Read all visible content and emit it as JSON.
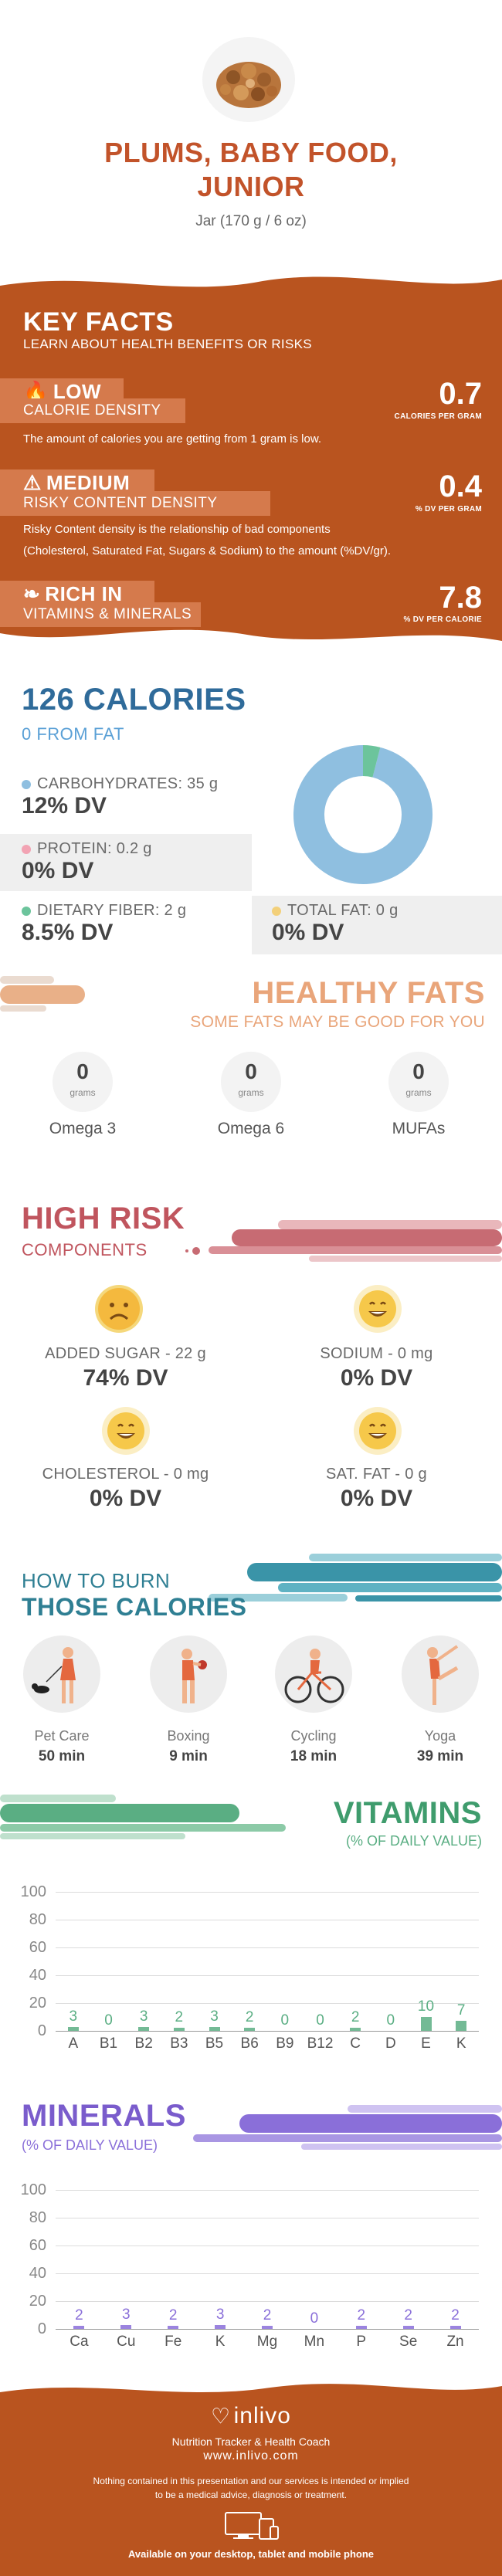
{
  "header": {
    "title_line1": "PLUMS, BABY FOOD,",
    "title_line2": "JUNIOR",
    "serving": "Jar (170 g / 6 oz)"
  },
  "key_facts": {
    "title": "KEY FACTS",
    "subtitle": "LEARN ABOUT HEALTH BENEFITS OR RISKS",
    "calorie": {
      "level": "LOW",
      "label": "CALORIE DENSITY",
      "value": "0.7",
      "unit": "CALORIES PER GRAM",
      "desc": "The amount of calories you are getting from 1 gram is low."
    },
    "risky": {
      "level": "MEDIUM",
      "label": "RISKY CONTENT DENSITY",
      "value": "0.4",
      "unit": "% DV PER GRAM",
      "desc1": "Risky Content density is the relationship of bad components",
      "desc2": "(Cholesterol, Saturated Fat, Sugars & Sodium) to the amount (%DV/gr)."
    },
    "rich": {
      "level": "RICH  IN",
      "label": "VITAMINS & MINERALS",
      "value": "7.8",
      "unit": "% DV PER CALORIE"
    }
  },
  "calories": {
    "title": "126 CALORIES",
    "from_fat": "0 FROM FAT",
    "carbs_label": "CARBOHYDRATES: 35 g",
    "carbs_dv": "12% DV",
    "protein_label": "PROTEIN: 0.2 g",
    "protein_dv": "0% DV",
    "fiber_label": "DIETARY FIBER: 2 g",
    "fiber_dv": "8.5% DV",
    "fat_label": "TOTAL FAT: 0 g",
    "fat_dv": "0% DV",
    "donut": {
      "carbs_fraction": 0.96,
      "fiber_fraction": 0.04
    },
    "colors": {
      "carbs": "#8fbfe0",
      "protein": "#f2a3b3",
      "fiber": "#6cc49c",
      "fat": "#f3d07a"
    }
  },
  "healthy_fats": {
    "title": "HEALTHY FATS",
    "subtitle": "SOME FATS MAY BE GOOD FOR YOU",
    "items": [
      {
        "value": "0",
        "unit": "grams",
        "name": "Omega 3"
      },
      {
        "value": "0",
        "unit": "grams",
        "name": "Omega 6"
      },
      {
        "value": "0",
        "unit": "grams",
        "name": "MUFAs"
      }
    ]
  },
  "high_risk": {
    "title": "HIGH RISK",
    "subtitle": "COMPONENTS",
    "items": [
      {
        "label": "ADDED SUGAR - 22 g",
        "dv": "74% DV",
        "face": "sad-face-icon"
      },
      {
        "label": "SODIUM - 0 mg",
        "dv": "0% DV",
        "face": "happy-face-icon"
      },
      {
        "label": "CHOLESTEROL - 0 mg",
        "dv": "0% DV",
        "face": "happy-face-icon"
      },
      {
        "label": "SAT. FAT - 0 g",
        "dv": "0% DV",
        "face": "happy-face-icon"
      }
    ]
  },
  "burn": {
    "title_line1": "HOW TO BURN",
    "title_line2": "THOSE CALORIES",
    "activities": [
      {
        "name": "Pet Care",
        "minutes": "50 min",
        "icon": "dog-walking-icon"
      },
      {
        "name": "Boxing",
        "minutes": "9 min",
        "icon": "boxing-icon"
      },
      {
        "name": "Cycling",
        "minutes": "18 min",
        "icon": "cycling-icon"
      },
      {
        "name": "Yoga",
        "minutes": "39 min",
        "icon": "yoga-icon"
      }
    ]
  },
  "vitamins": {
    "title": "VITAMINS",
    "subtitle": "(% OF DAILY VALUE)",
    "chart_data": {
      "type": "bar",
      "categories": [
        "A",
        "B1",
        "B2",
        "B3",
        "B5",
        "B6",
        "B9",
        "B12",
        "C",
        "D",
        "E",
        "K"
      ],
      "values": [
        3,
        0,
        3,
        2,
        3,
        2,
        0,
        0,
        2,
        0,
        10,
        7
      ],
      "ylim": [
        0,
        100
      ],
      "yticks": [
        "100",
        "80",
        "60",
        "40",
        "20",
        "0"
      ],
      "color": "#5aae83"
    }
  },
  "minerals": {
    "title": "MINERALS",
    "subtitle": "(% OF DAILY VALUE)",
    "chart_data": {
      "type": "bar",
      "categories": [
        "Ca",
        "Cu",
        "Fe",
        "K",
        "Mg",
        "Mn",
        "P",
        "Se",
        "Zn"
      ],
      "values": [
        2,
        3,
        2,
        3,
        2,
        0,
        2,
        2,
        2
      ],
      "ylim": [
        0,
        100
      ],
      "yticks": [
        "100",
        "80",
        "60",
        "40",
        "20",
        "0"
      ],
      "color": "#8a6fd9"
    }
  },
  "footer": {
    "brand": "inlivo",
    "tagline": "Nutrition Tracker & Health Coach",
    "url": "www.inlivo.com",
    "disclaimer1": "Nothing contained in this presentation and our services is intended or implied",
    "disclaimer2": "to be a medical advice, diagnosis or treatment.",
    "available": "Available on your desktop, tablet and mobile phone"
  }
}
